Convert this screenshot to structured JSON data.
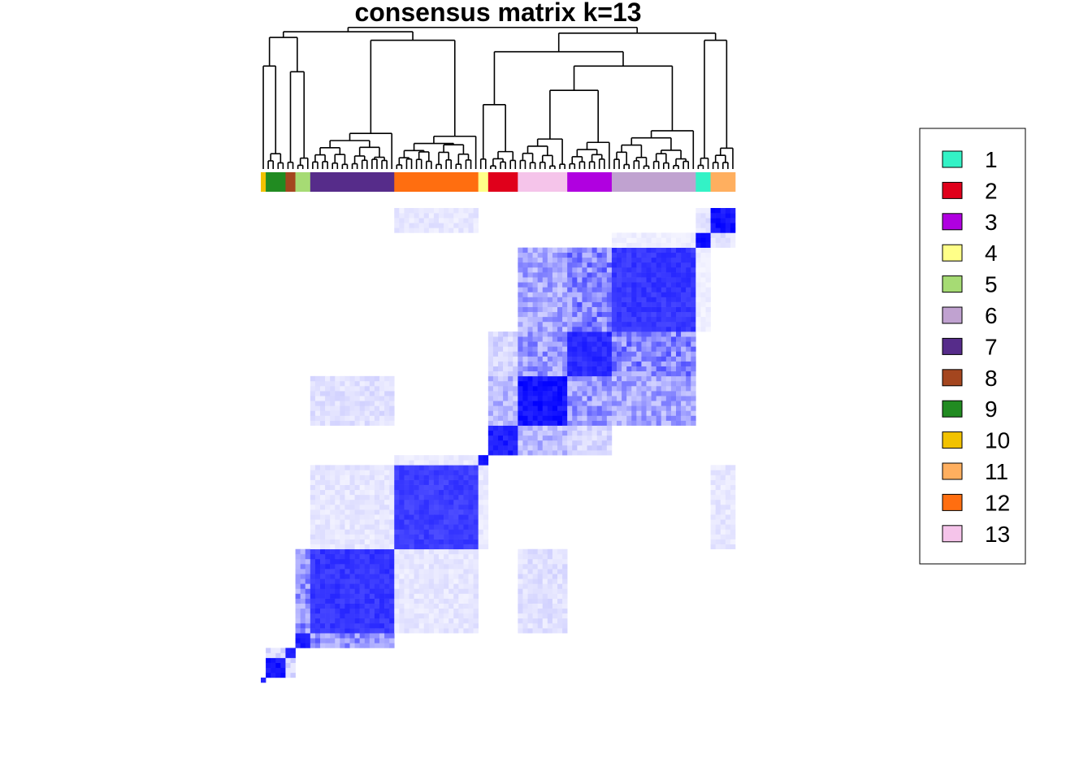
{
  "chart_data": {
    "type": "heatmap",
    "title": "consensus matrix k=13",
    "xlabel": "",
    "ylabel": "",
    "value_range": [
      0,
      1
    ],
    "color_low": "#ffffff",
    "color_high": "#0000ff",
    "legend_position": "right",
    "legend": [
      {
        "label": "1",
        "color": "#33f2c6"
      },
      {
        "label": "2",
        "color": "#e0001b"
      },
      {
        "label": "3",
        "color": "#b000e0"
      },
      {
        "label": "4",
        "color": "#ffff88"
      },
      {
        "label": "5",
        "color": "#a6db74"
      },
      {
        "label": "6",
        "color": "#c0a2d0"
      },
      {
        "label": "7",
        "color": "#562c8a"
      },
      {
        "label": "8",
        "color": "#a4461f"
      },
      {
        "label": "9",
        "color": "#218b21"
      },
      {
        "label": "10",
        "color": "#f2c200"
      },
      {
        "label": "11",
        "color": "#ffaf5f"
      },
      {
        "label": "12",
        "color": "#ff6e10"
      },
      {
        "label": "13",
        "color": "#f5c4ea"
      }
    ],
    "cluster_order": [
      10,
      9,
      8,
      5,
      7,
      12,
      4,
      2,
      13,
      3,
      6,
      1,
      11
    ],
    "cluster_sizes": [
      1,
      4,
      2,
      3,
      17,
      17,
      2,
      6,
      10,
      9,
      17,
      3,
      5
    ],
    "within_cluster_consensus": [
      1.0,
      1.0,
      1.0,
      0.95,
      0.85,
      0.82,
      1.0,
      0.95,
      1.0,
      0.9,
      0.85,
      1.0,
      1.0
    ],
    "between_cluster_consensus": [
      {
        "a": 7,
        "b": 5,
        "value": 0.55
      },
      {
        "a": 7,
        "b": 12,
        "value": 0.12
      },
      {
        "a": 12,
        "b": 4,
        "value": 0.1
      },
      {
        "a": 2,
        "b": 13,
        "value": 0.35
      },
      {
        "a": 2,
        "b": 3,
        "value": 0.2
      },
      {
        "a": 13,
        "b": 3,
        "value": 0.5
      },
      {
        "a": 13,
        "b": 6,
        "value": 0.45
      },
      {
        "a": 3,
        "b": 6,
        "value": 0.6
      },
      {
        "a": 6,
        "b": 1,
        "value": 0.08
      },
      {
        "a": 1,
        "b": 11,
        "value": 0.15
      },
      {
        "a": 9,
        "b": 8,
        "value": 0.2
      },
      {
        "a": 7,
        "b": 13,
        "value": 0.15
      },
      {
        "a": 12,
        "b": 11,
        "value": 0.12
      }
    ]
  }
}
